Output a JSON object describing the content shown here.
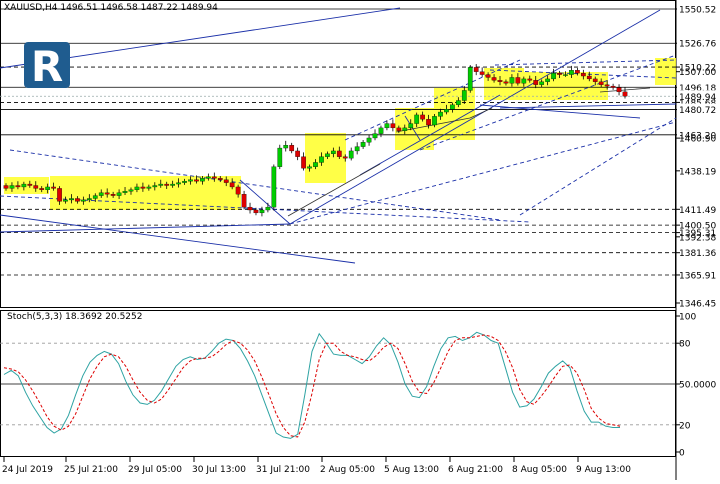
{
  "chart_data": [
    {
      "type": "candlestick",
      "title": "XAUUSD,H4",
      "ohlc_header": {
        "open": "1496.51",
        "high": "1496.58",
        "low": "1487.22",
        "close": "1489.94"
      },
      "ylim": [
        1340,
        1560
      ],
      "price_labels": [
        {
          "value": 1550.52,
          "text": "1550.52",
          "style": "solid"
        },
        {
          "value": 1526.76,
          "text": "1526.76",
          "style": "solid"
        },
        {
          "value": 1510.22,
          "text": "1510.22",
          "style": "dashed"
        },
        {
          "value": 1507.0,
          "text": "1507.00",
          "style": "tick"
        },
        {
          "value": 1496.18,
          "text": "1496.18",
          "style": "solid"
        },
        {
          "value": 1489.94,
          "text": "1489.94",
          "style": "current"
        },
        {
          "value": 1485.68,
          "text": "1485.68",
          "style": "dashed"
        },
        {
          "value": 1480.72,
          "text": "1480.72",
          "style": "solid"
        },
        {
          "value": 1463.2,
          "text": "1463.20",
          "style": "solid"
        },
        {
          "value": 1460.9,
          "text": "1460.90",
          "style": "tick"
        },
        {
          "value": 1438.19,
          "text": "1438.19",
          "style": "tick"
        },
        {
          "value": 1411.49,
          "text": "1411.49",
          "style": "dashed"
        },
        {
          "value": 1400.5,
          "text": "1400.50",
          "style": "dashed"
        },
        {
          "value": 1395.31,
          "text": "1395.31",
          "style": "dashed"
        },
        {
          "value": 1392.38,
          "text": "1392.38",
          "style": "tick"
        },
        {
          "value": 1381.36,
          "text": "1381.36",
          "style": "dashed"
        },
        {
          "value": 1365.91,
          "text": "1365.91",
          "style": "dashed"
        },
        {
          "value": 1346.45,
          "text": "1346.45",
          "style": "tick"
        }
      ],
      "x_labels": [
        "24 Jul 2019",
        "25 Jul 21:00",
        "29 Jul 05:00",
        "30 Jul 13:00",
        "31 Jul 21:00",
        "2 Aug 05:00",
        "5 Aug 13:00",
        "6 Aug 21:00",
        "8 Aug 05:00",
        "9 Aug 13:00"
      ],
      "closes": [
        1426,
        1428,
        1427,
        1429,
        1428,
        1426,
        1425,
        1427,
        1426,
        1417,
        1418,
        1419,
        1417,
        1418,
        1419,
        1421,
        1423,
        1422,
        1421,
        1423,
        1424,
        1425,
        1427,
        1426,
        1427,
        1428,
        1429,
        1428,
        1429,
        1430,
        1431,
        1432,
        1431,
        1433,
        1434,
        1433,
        1432,
        1430,
        1427,
        1422,
        1413,
        1411,
        1409,
        1411,
        1413,
        1441,
        1454,
        1456,
        1452,
        1448,
        1440,
        1441,
        1444,
        1448,
        1450,
        1452,
        1448,
        1447,
        1452,
        1455,
        1458,
        1461,
        1464,
        1468,
        1471,
        1468,
        1466,
        1468,
        1471,
        1477,
        1474,
        1470,
        1476,
        1479,
        1481,
        1484,
        1487,
        1494,
        1510,
        1507,
        1505,
        1503,
        1501,
        1500,
        1499,
        1503,
        1499,
        1502,
        1501,
        1498,
        1500,
        1502,
        1506,
        1505,
        1505,
        1508,
        1506,
        1504,
        1502,
        1500,
        1498,
        1497,
        1496,
        1493,
        1490
      ],
      "candle_colors": {
        "up": "#00cc00",
        "down": "#dd0000",
        "wick": "#000000"
      }
    },
    {
      "type": "line",
      "title": "Stoch(5,3,3) 18.3692 20.5252",
      "ylim": [
        0,
        100
      ],
      "y_ticks": [
        "100",
        "80",
        "50.0000",
        "20",
        "0"
      ],
      "levels": [
        80,
        50,
        20
      ],
      "series": [
        {
          "name": "Main",
          "color": "#2ea3a3",
          "style": "solid",
          "values": [
            57,
            60,
            56,
            44,
            34,
            26,
            18,
            14,
            17,
            27,
            42,
            56,
            66,
            71,
            74,
            72,
            65,
            52,
            42,
            36,
            35,
            38,
            45,
            54,
            63,
            68,
            70,
            68,
            69,
            74,
            80,
            83,
            82,
            76,
            67,
            56,
            42,
            28,
            14,
            11,
            10,
            13,
            42,
            74,
            87,
            80,
            72,
            71,
            71,
            68,
            65,
            70,
            78,
            84,
            79,
            66,
            50,
            41,
            40,
            48,
            63,
            76,
            84,
            85,
            82,
            84,
            88,
            86,
            82,
            80,
            62,
            44,
            33,
            34,
            39,
            48,
            58,
            63,
            67,
            62,
            45,
            30,
            22,
            22,
            19,
            18,
            18
          ]
        },
        {
          "name": "Signal",
          "color": "#dd0000",
          "style": "dashed",
          "values": [
            62,
            61,
            59,
            53,
            45,
            36,
            26,
            19,
            16,
            19,
            28,
            41,
            54,
            63,
            70,
            72,
            70,
            63,
            53,
            44,
            38,
            36,
            39,
            46,
            54,
            62,
            67,
            69,
            69,
            70,
            74,
            79,
            82,
            80,
            75,
            67,
            55,
            42,
            28,
            18,
            12,
            11,
            22,
            43,
            68,
            80,
            80,
            74,
            71,
            70,
            68,
            67,
            71,
            77,
            80,
            76,
            65,
            52,
            44,
            43,
            51,
            62,
            74,
            82,
            84,
            84,
            85,
            86,
            85,
            82,
            74,
            62,
            46,
            37,
            35,
            41,
            48,
            56,
            63,
            64,
            58,
            46,
            32,
            25,
            21,
            20,
            19
          ]
        }
      ]
    }
  ],
  "logo_letter": "R"
}
